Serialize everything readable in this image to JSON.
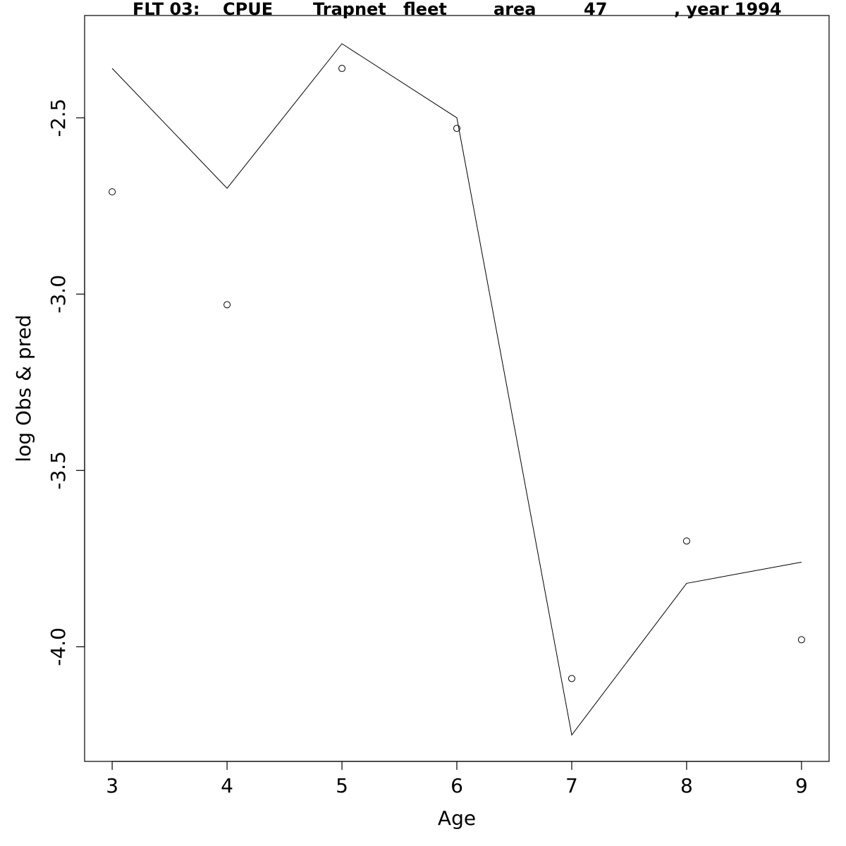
{
  "chart_data": {
    "type": "line",
    "title_segments": [
      "FLT 03:",
      "CPUE",
      "Trapnet",
      "fleet",
      "area",
      "47",
      ", year 1994"
    ],
    "xlabel": "Age",
    "ylabel": "log Obs & pred",
    "x_ticks": [
      3,
      4,
      5,
      6,
      7,
      8,
      9
    ],
    "y_ticks": [
      -2.5,
      -3.0,
      -3.5,
      -4.0
    ],
    "y_tick_labels": [
      "-2.5",
      "-3.0",
      "-3.5",
      "-4.0"
    ],
    "xlim": [
      2.76,
      9.24
    ],
    "ylim": [
      -4.325,
      -2.21
    ],
    "grid": false,
    "series": [
      {
        "style": "line",
        "x": [
          3,
          4,
          5,
          6,
          7,
          8,
          9
        ],
        "y": [
          -2.36,
          -2.7,
          -2.29,
          -2.5,
          -4.25,
          -3.82,
          -3.76
        ]
      },
      {
        "style": "points",
        "x": [
          3,
          4,
          5,
          6,
          7,
          8,
          9
        ],
        "y": [
          -2.71,
          -3.03,
          -2.36,
          -2.53,
          -4.09,
          -3.7,
          -3.98
        ]
      }
    ]
  }
}
